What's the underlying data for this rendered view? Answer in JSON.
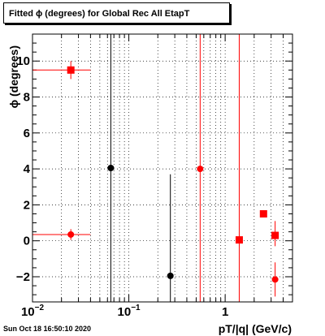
{
  "title": "Fitted ϕ (degrees) for Global Rec All EtapT",
  "timestamp": "Sun Oct 18 16:50:10 2020",
  "chart_data": {
    "type": "scatter",
    "title": "Fitted ϕ (degrees) for Global Rec All EtapT",
    "xlabel": "pT/|q| (GeV/c)",
    "ylabel": "ϕ (degrees)",
    "x_scale": "log",
    "xlim": [
      0.01,
      5
    ],
    "ylim": [
      -3.4,
      11.5
    ],
    "grid": true,
    "x_ticks": [
      {
        "value": 0.01,
        "base": "10",
        "exp": "−2"
      },
      {
        "value": 0.1,
        "base": "10",
        "exp": "−1"
      },
      {
        "value": 1,
        "base": "1",
        "exp": ""
      }
    ],
    "y_ticks": [
      {
        "value": -2,
        "label": "−2"
      },
      {
        "value": 0,
        "label": "0"
      },
      {
        "value": 2,
        "label": "2"
      },
      {
        "value": 4,
        "label": "4"
      },
      {
        "value": 6,
        "label": "6"
      },
      {
        "value": 8,
        "label": "8"
      },
      {
        "value": 10,
        "label": "10"
      }
    ],
    "series": [
      {
        "color": "#000000",
        "marker": "circle",
        "points": [
          {
            "x": 0.065,
            "y": 4.05,
            "y_low": -3.4,
            "y_high": 11.5
          },
          {
            "x": 0.27,
            "y": -1.95,
            "y_low": -3.4,
            "y_high": 3.7
          }
        ]
      },
      {
        "color": "#ff0000",
        "marker": "circle",
        "points": [
          {
            "x": 0.025,
            "y": 0.35,
            "x_low": 0.01,
            "x_high": 0.04,
            "y_low": 0.05,
            "y_high": 0.65
          },
          {
            "x": 0.55,
            "y": 4.0,
            "y_low": -3.4,
            "y_high": 11.5
          },
          {
            "x": 3.3,
            "y": -2.15,
            "y_low": -3.1,
            "y_high": -1.2
          }
        ]
      },
      {
        "color": "#ff0000",
        "marker": "square",
        "points": [
          {
            "x": 0.025,
            "y": 9.5,
            "x_low": 0.01,
            "x_high": 0.04,
            "y_low": 9.0,
            "y_high": 10.0
          },
          {
            "x": 1.4,
            "y": 0.05,
            "y_low": -3.4,
            "y_high": 11.5
          },
          {
            "x": 2.5,
            "y": 1.5
          },
          {
            "x": 3.3,
            "y": 0.3,
            "y_low": -0.3,
            "y_high": 1.1
          }
        ]
      }
    ]
  }
}
